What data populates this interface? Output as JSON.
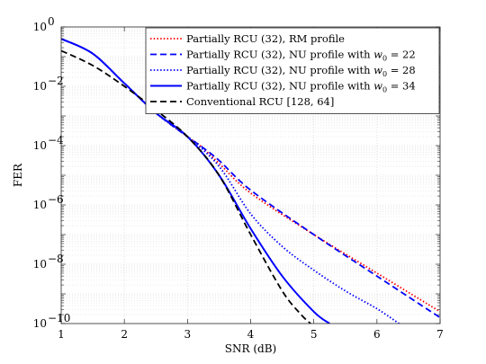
{
  "chart_data": {
    "type": "line",
    "title": "",
    "xlabel": "SNR (dB)",
    "ylabel": "FER",
    "xlim": [
      1,
      7
    ],
    "ylim_exp": [
      -10,
      0
    ],
    "y_scale": "log",
    "grid": true,
    "minor_grid": true,
    "legend_position": "top-right",
    "x_ticks": [
      "1",
      "2",
      "3",
      "4",
      "5",
      "6",
      "7"
    ],
    "y_ticks": [
      {
        "exp": 0,
        "label": "10"
      },
      {
        "exp": -2,
        "label": "10"
      },
      {
        "exp": -4,
        "label": "10"
      },
      {
        "exp": -6,
        "label": "10"
      },
      {
        "exp": -8,
        "label": "10"
      },
      {
        "exp": -10,
        "label": "10"
      }
    ],
    "series": [
      {
        "name": "Partially RCU (32), RM profile",
        "legend_math": "",
        "color": "#ff0000",
        "dash": "dotted",
        "x": [
          1.0,
          1.5,
          2.0,
          2.5,
          3.0,
          3.2,
          3.5,
          4.0,
          5.0,
          6.0,
          7.0
        ],
        "y_exp": [
          -0.4,
          -0.9,
          -1.9,
          -2.9,
          -3.7,
          -4.0,
          -4.6,
          -5.6,
          -7.0,
          -8.3,
          -9.6
        ]
      },
      {
        "name": "Partially RCU (32), NU profile with ",
        "legend_math": "w0 = 22",
        "color": "#0000ff",
        "dash": "dashed",
        "x": [
          1.0,
          1.5,
          2.0,
          2.5,
          3.0,
          3.2,
          3.5,
          4.0,
          5.0,
          6.0,
          7.0
        ],
        "y_exp": [
          -0.4,
          -0.9,
          -1.9,
          -2.9,
          -3.7,
          -4.0,
          -4.5,
          -5.5,
          -7.0,
          -8.4,
          -9.8
        ]
      },
      {
        "name": "Partially RCU (32), NU profile with ",
        "legend_math": "w0 = 28",
        "color": "#0000ff",
        "dash": "dotted",
        "x": [
          1.0,
          1.5,
          2.0,
          2.5,
          3.0,
          3.5,
          4.0,
          4.5,
          5.0,
          5.5,
          6.0,
          6.35
        ],
        "y_exp": [
          -0.4,
          -0.9,
          -1.9,
          -2.9,
          -3.7,
          -4.7,
          -6.3,
          -7.4,
          -8.2,
          -8.9,
          -9.5,
          -10.0
        ]
      },
      {
        "name": "Partially RCU (32), NU profile with ",
        "legend_math": "w0 = 34",
        "color": "#0000ff",
        "dash": "solid",
        "x": [
          1.0,
          1.5,
          2.0,
          2.5,
          3.0,
          3.5,
          4.0,
          4.5,
          5.0,
          5.25
        ],
        "y_exp": [
          -0.4,
          -0.9,
          -1.9,
          -2.9,
          -3.7,
          -5.0,
          -6.8,
          -8.4,
          -9.6,
          -10.0
        ]
      },
      {
        "name": "Conventional RCU [128, 64]",
        "legend_math": "",
        "color": "#000000",
        "dash": "dashed",
        "x": [
          1.0,
          1.5,
          2.0,
          2.5,
          3.0,
          3.5,
          4.0,
          4.5,
          4.8,
          4.95
        ],
        "y_exp": [
          -0.8,
          -1.3,
          -2.0,
          -2.8,
          -3.7,
          -5.0,
          -7.0,
          -8.9,
          -9.7,
          -10.0
        ]
      }
    ]
  }
}
